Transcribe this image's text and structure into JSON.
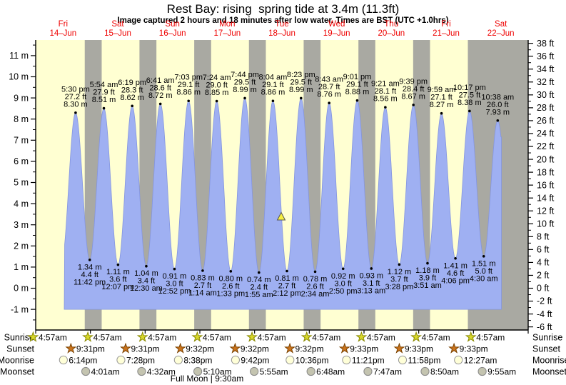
{
  "chart_data": {
    "type": "area",
    "title": "Rest Bay: rising  spring tide at 3.4m (11.3ft)",
    "subtitle": "Image captured 2 hours and 18 minutes after low water. Times are BST (UTC +1.0hrs)",
    "days": [
      {
        "name": "Fri",
        "date": "14–Jun"
      },
      {
        "name": "Sat",
        "date": "15–Jun"
      },
      {
        "name": "Sun",
        "date": "16–Jun"
      },
      {
        "name": "Mon",
        "date": "17–Jun"
      },
      {
        "name": "Tue",
        "date": "18–Jun"
      },
      {
        "name": "Wed",
        "date": "19–Jun"
      },
      {
        "name": "Thu",
        "date": "20–Jun"
      },
      {
        "name": "Fri",
        "date": "21–Jun"
      },
      {
        "name": "Sat",
        "date": "22–Jun"
      }
    ],
    "y_axis_left": {
      "unit": "m",
      "min": -1,
      "max": 11,
      "step": 1
    },
    "y_axis_right": {
      "unit": "ft",
      "min": -6,
      "max": 38,
      "step": 2
    },
    "tide_events": [
      {
        "type": "high",
        "time": "5:30 pm",
        "ft": "27.2 ft",
        "m": "8.30 m",
        "height_m": 8.3
      },
      {
        "type": "low",
        "time": "11:42 pm",
        "ft": "4.4 ft",
        "m": "1.34 m",
        "height_m": 1.34
      },
      {
        "type": "high",
        "time": "5:54 am",
        "ft": "27.9 ft",
        "m": "8.51 m",
        "height_m": 8.51
      },
      {
        "type": "low",
        "time": "12:07 pm",
        "ft": "3.6 ft",
        "m": "1.11 m",
        "height_m": 1.11
      },
      {
        "type": "high",
        "time": "6:19 pm",
        "ft": "28.3 ft",
        "m": "8.62 m",
        "height_m": 8.62
      },
      {
        "type": "low",
        "time": "12:30 am",
        "ft": "3.4 ft",
        "m": "1.04 m",
        "height_m": 1.04
      },
      {
        "type": "high",
        "time": "6:41 am",
        "ft": "28.6 ft",
        "m": "8.72 m",
        "height_m": 8.72
      },
      {
        "type": "low",
        "time": "12:52 pm",
        "ft": "3.0 ft",
        "m": "0.91 m",
        "height_m": 0.91
      },
      {
        "type": "high",
        "time": "7:03 pm",
        "ft": "29.1 ft",
        "m": "8.86 m",
        "height_m": 8.86
      },
      {
        "type": "low",
        "time": "1:14 am",
        "ft": "2.7 ft",
        "m": "0.83 m",
        "height_m": 0.83
      },
      {
        "type": "high",
        "time": "7:24 am",
        "ft": "29.0 ft",
        "m": "8.85 m",
        "height_m": 8.85
      },
      {
        "type": "low",
        "time": "1:33 pm",
        "ft": "2.6 ft",
        "m": "0.80 m",
        "height_m": 0.8
      },
      {
        "type": "high",
        "time": "7:44 pm",
        "ft": "29.5 ft",
        "m": "8.99 m",
        "height_m": 8.99
      },
      {
        "type": "low",
        "time": "1:55 am",
        "ft": "2.4 ft",
        "m": "0.74 m",
        "height_m": 0.74
      },
      {
        "type": "high",
        "time": "8:04 am",
        "ft": "29.1 ft",
        "m": "8.86 m",
        "height_m": 8.86
      },
      {
        "type": "low",
        "time": "2:12 pm",
        "ft": "2.7 ft",
        "m": "0.81 m",
        "height_m": 0.81
      },
      {
        "type": "high",
        "time": "8:23 pm",
        "ft": "29.5 ft",
        "m": "8.99 m",
        "height_m": 8.99
      },
      {
        "type": "low",
        "time": "2:34 am",
        "ft": "2.6 ft",
        "m": "0.78 m",
        "height_m": 0.78
      },
      {
        "type": "high",
        "time": "8:43 am",
        "ft": "28.7 ft",
        "m": "8.76 m",
        "height_m": 8.76
      },
      {
        "type": "low",
        "time": "2:50 pm",
        "ft": "3.0 ft",
        "m": "0.92 m",
        "height_m": 0.92
      },
      {
        "type": "high",
        "time": "9:01 pm",
        "ft": "29.1 ft",
        "m": "8.88 m",
        "height_m": 8.88
      },
      {
        "type": "low",
        "time": "3:13 am",
        "ft": "3.1 ft",
        "m": "0.93 m",
        "height_m": 0.93
      },
      {
        "type": "high",
        "time": "9:21 am",
        "ft": "28.1 ft",
        "m": "8.56 m",
        "height_m": 8.56
      },
      {
        "type": "low",
        "time": "3:28 pm",
        "ft": "3.7 ft",
        "m": "1.12 m",
        "height_m": 1.12
      },
      {
        "type": "high",
        "time": "9:39 pm",
        "ft": "28.4 ft",
        "m": "8.67 m",
        "height_m": 8.67
      },
      {
        "type": "low",
        "time": "3:51 am",
        "ft": "3.9 ft",
        "m": "1.18 m",
        "height_m": 1.18
      },
      {
        "type": "high",
        "time": "9:59 am",
        "ft": "27.1 ft",
        "m": "8.27 m",
        "height_m": 8.27
      },
      {
        "type": "low",
        "time": "4:06 pm",
        "ft": "4.6 ft",
        "m": "1.41 m",
        "height_m": 1.41
      },
      {
        "type": "high",
        "time": "10:17 pm",
        "ft": "27.5 ft",
        "m": "8.38 m",
        "height_m": 8.38
      },
      {
        "type": "low",
        "time": "4:30 am",
        "ft": "5.0 ft",
        "m": "1.51 m",
        "height_m": 1.51
      },
      {
        "type": "high",
        "time": "10:38 am",
        "ft": "26.0 ft",
        "m": "7.93 m",
        "height_m": 7.93
      }
    ],
    "current_marker": {
      "height_m": 3.4,
      "height_ft": 11.3,
      "status": "rising"
    },
    "sun_moon": {
      "rows": [
        {
          "label": "Sunrise",
          "icon": "sunrise-star",
          "events": [
            {
              "day": 0,
              "time": "4:57am"
            },
            {
              "day": 1,
              "time": "4:57am"
            },
            {
              "day": 2,
              "time": "4:57am"
            },
            {
              "day": 3,
              "time": "4:57am"
            },
            {
              "day": 4,
              "time": "4:57am"
            },
            {
              "day": 5,
              "time": "4:57am"
            },
            {
              "day": 6,
              "time": "4:57am"
            },
            {
              "day": 7,
              "time": "4:57am"
            },
            {
              "day": 8,
              "time": "4:57am"
            }
          ]
        },
        {
          "label": "Sunset",
          "icon": "sunset-star",
          "events": [
            {
              "day": 0,
              "time": "9:31pm"
            },
            {
              "day": 1,
              "time": "9:31pm"
            },
            {
              "day": 2,
              "time": "9:32pm"
            },
            {
              "day": 3,
              "time": "9:32pm"
            },
            {
              "day": 4,
              "time": "9:32pm"
            },
            {
              "day": 5,
              "time": "9:33pm"
            },
            {
              "day": 6,
              "time": "9:33pm"
            },
            {
              "day": 7,
              "time": "9:33pm"
            }
          ]
        },
        {
          "label": "Moonrise",
          "icon": "moonrise-circle",
          "events": [
            {
              "day": 0,
              "time": "6:14pm"
            },
            {
              "day": 1,
              "time": "7:28pm"
            },
            {
              "day": 2,
              "time": "8:38pm"
            },
            {
              "day": 3,
              "time": "9:42pm"
            },
            {
              "day": 4,
              "time": "10:36pm"
            },
            {
              "day": 5,
              "time": "11:21pm"
            },
            {
              "day": 6,
              "time": "11:58pm"
            },
            {
              "day": 8,
              "time": "12:27am"
            }
          ]
        },
        {
          "label": "Moonset",
          "icon": "moonset-circle",
          "events": [
            {
              "day": 1,
              "time": "4:01am"
            },
            {
              "day": 2,
              "time": "4:32am"
            },
            {
              "day": 3,
              "time": "5:10am"
            },
            {
              "day": 4,
              "time": "5:55am"
            },
            {
              "day": 5,
              "time": "6:48am"
            },
            {
              "day": 6,
              "time": "7:47am"
            },
            {
              "day": 7,
              "time": "8:50am"
            },
            {
              "day": 8,
              "time": "9:55am"
            }
          ]
        }
      ],
      "moon_phase": "Full Moon | 9:30am"
    },
    "colors": {
      "day_band": "#ffffd2",
      "night_band": "#a9a9a2",
      "water": "#9fb0f2",
      "water_edge": "#8495e0",
      "day_label": "#ee0000",
      "marker_fill": "#f7ef3c"
    }
  }
}
